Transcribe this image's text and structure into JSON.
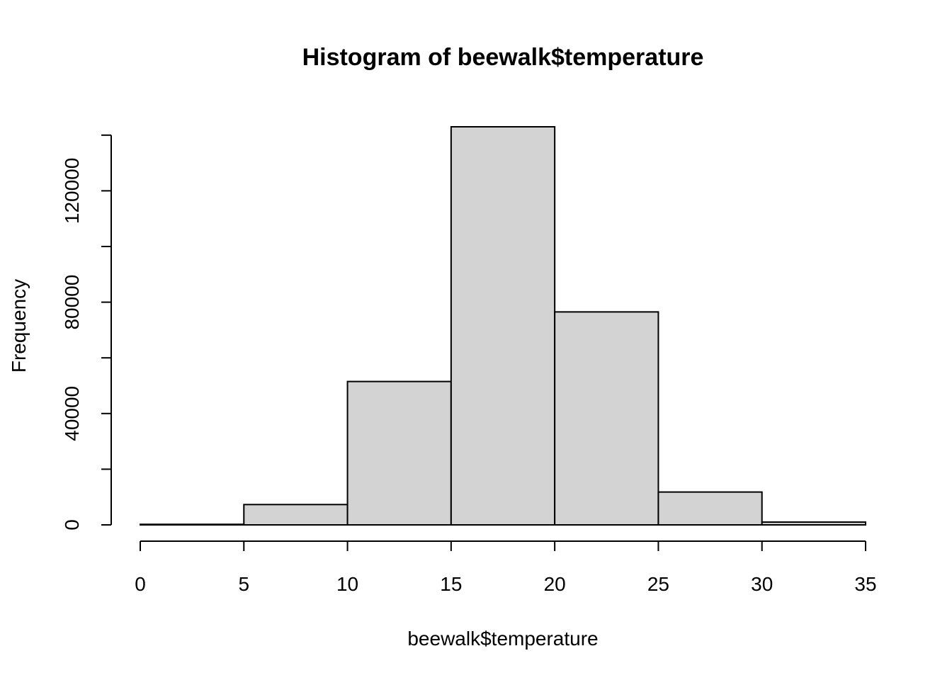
{
  "chart_data": {
    "type": "bar",
    "title": "Histogram of beewalk$temperature",
    "xlabel": "beewalk$temperature",
    "ylabel": "Frequency",
    "bins": [
      {
        "from": 0,
        "to": 5,
        "count": 200
      },
      {
        "from": 5,
        "to": 10,
        "count": 7300
      },
      {
        "from": 10,
        "to": 15,
        "count": 51500
      },
      {
        "from": 15,
        "to": 20,
        "count": 143000
      },
      {
        "from": 20,
        "to": 25,
        "count": 76500
      },
      {
        "from": 25,
        "to": 30,
        "count": 11800
      },
      {
        "from": 30,
        "to": 35,
        "count": 1000
      }
    ],
    "x_ticks": [
      0,
      5,
      10,
      15,
      20,
      25,
      30,
      35
    ],
    "y_ticks": [
      0,
      20000,
      40000,
      60000,
      80000,
      100000,
      120000,
      140000
    ],
    "y_tick_labels": [
      {
        "value": 0,
        "label": "0"
      },
      {
        "value": 40000,
        "label": "40000"
      },
      {
        "value": 80000,
        "label": "80000"
      },
      {
        "value": 120000,
        "label": "120000"
      }
    ],
    "xlim": [
      0,
      35
    ],
    "ylim": [
      0,
      143000
    ],
    "bar_color": "#d3d3d3",
    "grid": false,
    "legend": "none"
  }
}
